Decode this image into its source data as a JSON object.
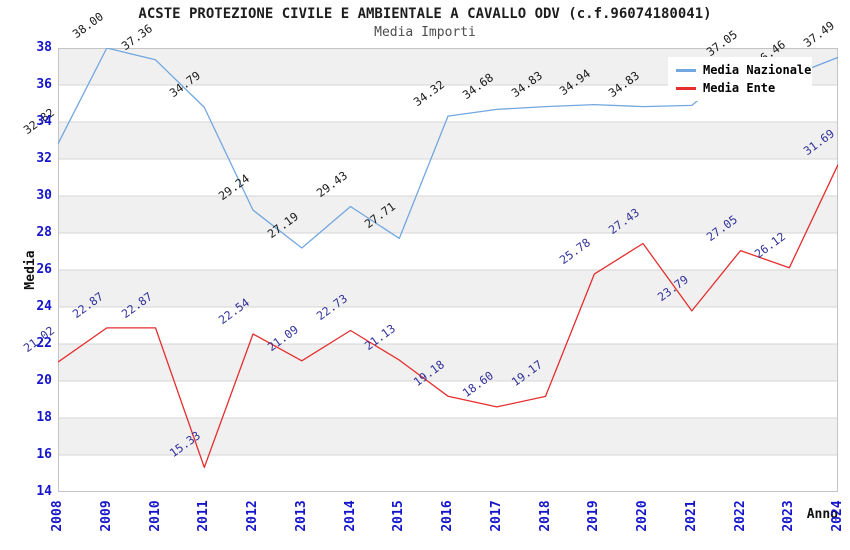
{
  "title": "ACSTE PROTEZIONE CIVILE E AMBIENTALE A CAVALLO ODV (c.f.96074180041)",
  "subtitle": "Media Importi",
  "colors": {
    "tick_label": "#1515cc",
    "grid_band": "#f0f0f0",
    "gridline": "#d6d6d6",
    "plot_border": "#c4c4c4",
    "nazionale_line": "#72a7e0",
    "ente_line": "#e62e2e",
    "nazionale_label": "#1a1a1a",
    "ente_label": "#32329b"
  },
  "legend": {
    "items": [
      {
        "label": "Media Nazionale",
        "color": "#72a7e0"
      },
      {
        "label": "Media Ente",
        "color": "#e62e2e"
      }
    ]
  },
  "chart_data": {
    "type": "line",
    "title": "ACSTE PROTEZIONE CIVILE E AMBIENTALE A CAVALLO ODV (c.f.96074180041)",
    "subtitle": "Media Importi",
    "xlabel": "Anno",
    "ylabel": "Media",
    "x": [
      2008,
      2009,
      2010,
      2011,
      2012,
      2013,
      2014,
      2015,
      2016,
      2017,
      2018,
      2019,
      2020,
      2021,
      2022,
      2023,
      2024
    ],
    "ylim": [
      14,
      38
    ],
    "ytick_step": 2,
    "yticks": [
      14,
      16,
      18,
      20,
      22,
      24,
      26,
      28,
      30,
      32,
      34,
      36,
      38
    ],
    "grid": "horizontal-bands-alternating",
    "legend_position": "top-right-overlay",
    "series": [
      {
        "name": "Media Nazionale",
        "color": "#72a7e0",
        "label_color": "#1a1a1a",
        "values": [
          32.82,
          38.0,
          37.36,
          34.79,
          29.24,
          27.19,
          29.43,
          27.71,
          34.32,
          34.68,
          34.83,
          34.94,
          34.83,
          34.9,
          37.05,
          36.46,
          37.49
        ],
        "labels": [
          "32.82",
          "38.00",
          "37.36",
          "34.79",
          "29.24",
          "27.19",
          "29.43",
          "27.71",
          "34.32",
          "34.68",
          "34.83",
          "34.94",
          "34.83",
          "",
          "37.05",
          "36.46",
          "37.49"
        ],
        "note": "2021 label hidden behind legend; 2023 label partially hidden (only '46' visible)"
      },
      {
        "name": "Media Ente",
        "color": "#e62e2e",
        "label_color": "#32329b",
        "values": [
          21.02,
          22.87,
          22.87,
          15.33,
          22.54,
          21.09,
          22.73,
          21.13,
          19.18,
          18.6,
          19.17,
          25.78,
          27.43,
          23.79,
          27.05,
          26.12,
          31.69
        ],
        "labels": [
          "21.02",
          "22.87",
          "22.87",
          "15.33",
          "22.54",
          "21.09",
          "22.73",
          "21.13",
          "19.18",
          "18.60",
          "19.17",
          "25.78",
          "27.43",
          "23.79",
          "27.05",
          "26.12",
          "31.69"
        ]
      }
    ]
  }
}
